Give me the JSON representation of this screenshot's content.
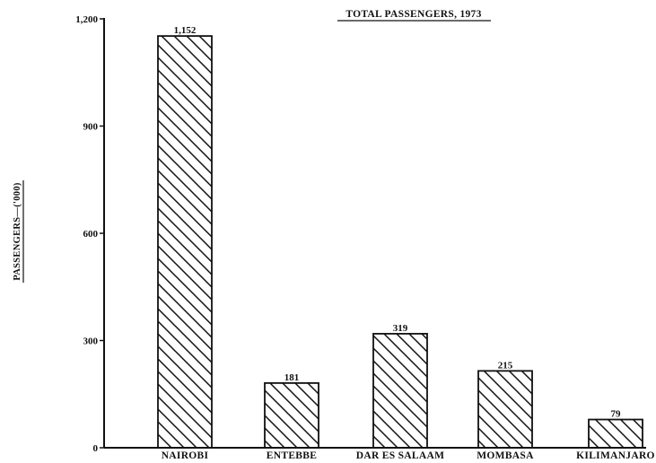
{
  "chart_data": {
    "type": "bar",
    "title": "TOTAL PASSENGERS, 1973",
    "ylabel": "PASSENGERS—('000)",
    "xlabel": "",
    "categories": [
      "NAIROBI",
      "ENTEBBE",
      "DAR ES SALAAM",
      "MOMBASA",
      "KILIMANJARO"
    ],
    "values": [
      1152,
      181,
      319,
      215,
      79
    ],
    "value_labels": [
      "1,152",
      "181",
      "319",
      "215",
      "79"
    ],
    "yticks": [
      0,
      300,
      600,
      900,
      1200
    ],
    "ytick_labels": [
      "0",
      "300",
      "600",
      "900",
      "1,200"
    ],
    "ylim": [
      0,
      1200
    ],
    "grid": false,
    "legend": "none",
    "bar_style": "diagonal-hatch",
    "colors": {
      "ink": "#111111",
      "background": "#ffffff"
    }
  }
}
